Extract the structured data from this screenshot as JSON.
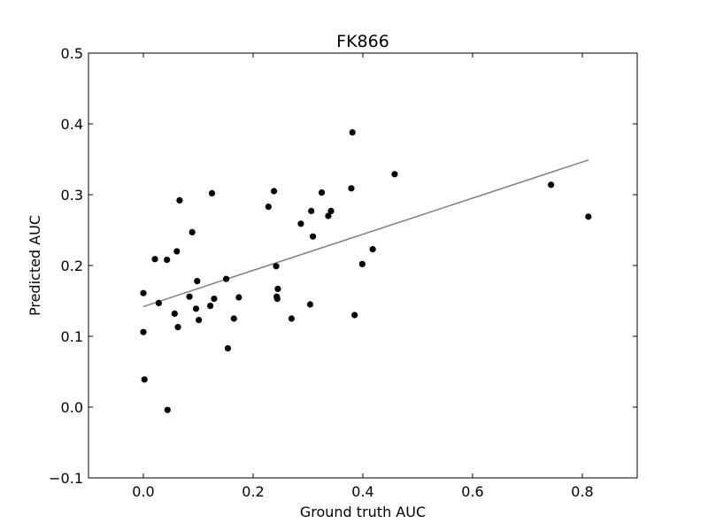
{
  "chart_data": {
    "type": "scatter",
    "title": "FK866",
    "xlabel": "Ground truth AUC",
    "ylabel": "Predicted AUC",
    "xlim": [
      -0.1,
      0.9
    ],
    "ylim": [
      -0.1,
      0.5
    ],
    "xticks": [
      0.0,
      0.2,
      0.4,
      0.6,
      0.8
    ],
    "xtick_labels": [
      "0.0",
      "0.2",
      "0.4",
      "0.6",
      "0.8"
    ],
    "yticks": [
      -0.1,
      0.0,
      0.1,
      0.2,
      0.3,
      0.4,
      0.5
    ],
    "ytick_labels": [
      "−0.1",
      "0.0",
      "0.1",
      "0.2",
      "0.3",
      "0.4",
      "0.5"
    ],
    "grid": false,
    "point_color": "#000000",
    "fit_line_color": "#808080",
    "points": [
      {
        "x": 0.0,
        "y": 0.161
      },
      {
        "x": 0.0,
        "y": 0.106
      },
      {
        "x": 0.002,
        "y": 0.039
      },
      {
        "x": 0.021,
        "y": 0.209
      },
      {
        "x": 0.028,
        "y": 0.147
      },
      {
        "x": 0.043,
        "y": 0.208
      },
      {
        "x": 0.044,
        "y": -0.004
      },
      {
        "x": 0.057,
        "y": 0.132
      },
      {
        "x": 0.061,
        "y": 0.22
      },
      {
        "x": 0.063,
        "y": 0.113
      },
      {
        "x": 0.066,
        "y": 0.292
      },
      {
        "x": 0.084,
        "y": 0.156
      },
      {
        "x": 0.089,
        "y": 0.247
      },
      {
        "x": 0.096,
        "y": 0.139
      },
      {
        "x": 0.098,
        "y": 0.178
      },
      {
        "x": 0.101,
        "y": 0.123
      },
      {
        "x": 0.122,
        "y": 0.143
      },
      {
        "x": 0.125,
        "y": 0.302
      },
      {
        "x": 0.129,
        "y": 0.153
      },
      {
        "x": 0.151,
        "y": 0.181
      },
      {
        "x": 0.154,
        "y": 0.083
      },
      {
        "x": 0.165,
        "y": 0.125
      },
      {
        "x": 0.174,
        "y": 0.155
      },
      {
        "x": 0.228,
        "y": 0.283
      },
      {
        "x": 0.238,
        "y": 0.305
      },
      {
        "x": 0.242,
        "y": 0.199
      },
      {
        "x": 0.243,
        "y": 0.156
      },
      {
        "x": 0.244,
        "y": 0.153
      },
      {
        "x": 0.245,
        "y": 0.167
      },
      {
        "x": 0.27,
        "y": 0.125
      },
      {
        "x": 0.287,
        "y": 0.259
      },
      {
        "x": 0.304,
        "y": 0.145
      },
      {
        "x": 0.306,
        "y": 0.277
      },
      {
        "x": 0.309,
        "y": 0.241
      },
      {
        "x": 0.325,
        "y": 0.303
      },
      {
        "x": 0.337,
        "y": 0.27
      },
      {
        "x": 0.342,
        "y": 0.277
      },
      {
        "x": 0.379,
        "y": 0.309
      },
      {
        "x": 0.381,
        "y": 0.388
      },
      {
        "x": 0.385,
        "y": 0.13
      },
      {
        "x": 0.399,
        "y": 0.202
      },
      {
        "x": 0.418,
        "y": 0.223
      },
      {
        "x": 0.458,
        "y": 0.329
      },
      {
        "x": 0.743,
        "y": 0.314
      },
      {
        "x": 0.811,
        "y": 0.269
      }
    ],
    "fit_line": {
      "x": [
        0.0,
        0.811
      ],
      "y": [
        0.142,
        0.349
      ]
    }
  }
}
